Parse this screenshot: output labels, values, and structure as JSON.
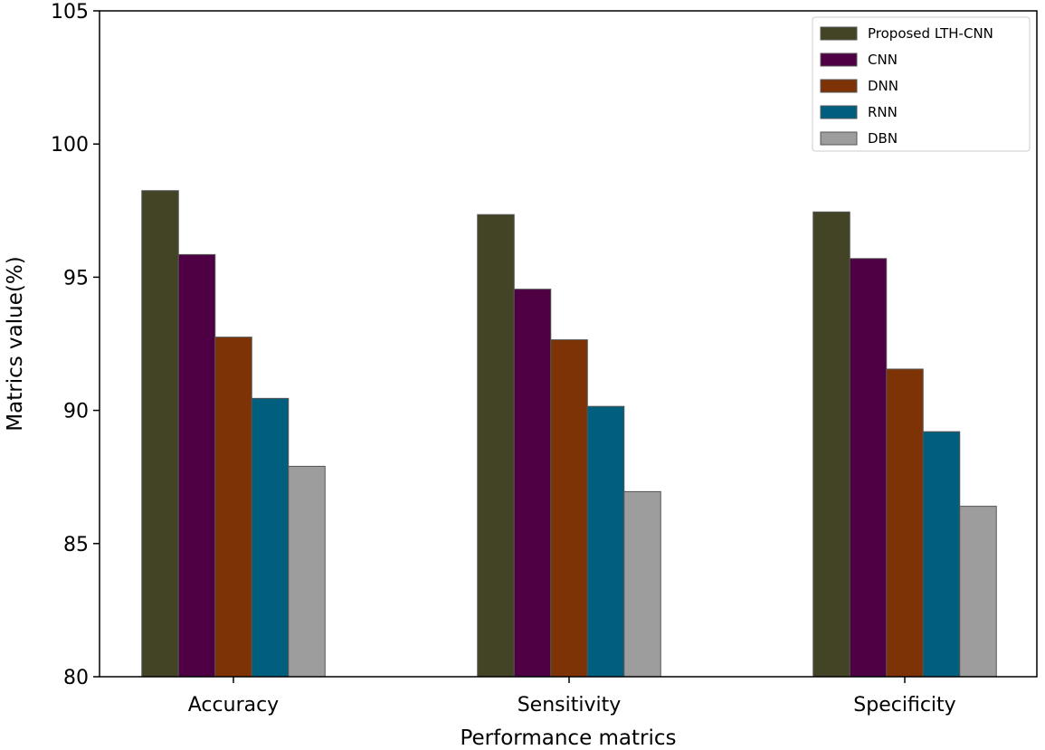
{
  "chart_data": {
    "type": "bar",
    "title": "",
    "xlabel": "Performance matrics",
    "ylabel": "Matrics value(%)",
    "ylim": [
      80,
      105
    ],
    "yticks": [
      80,
      85,
      90,
      95,
      100,
      105
    ],
    "categories": [
      "Accuracy",
      "Sensitivity",
      "Specificity"
    ],
    "grid": false,
    "legend_position": "top-right",
    "series": [
      {
        "name": "Proposed LTH-CNN",
        "color": "#434426",
        "values": [
          98.25,
          97.35,
          97.45
        ]
      },
      {
        "name": "CNN",
        "color": "#4f0045",
        "values": [
          95.85,
          94.55,
          95.7
        ]
      },
      {
        "name": "DNN",
        "color": "#7d3305",
        "values": [
          92.75,
          92.65,
          91.55
        ]
      },
      {
        "name": "RNN",
        "color": "#005f7f",
        "values": [
          90.45,
          90.15,
          89.2
        ]
      },
      {
        "name": "DBN",
        "color": "#9d9d9d",
        "values": [
          87.9,
          86.95,
          86.4
        ]
      }
    ]
  }
}
